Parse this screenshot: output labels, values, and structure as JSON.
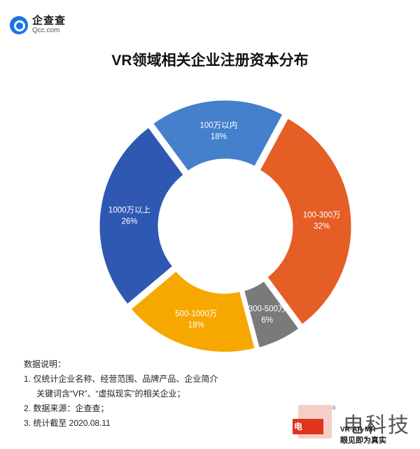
{
  "brand": {
    "name": "企查查",
    "sub": "Qcc.com"
  },
  "chart_data": {
    "type": "pie",
    "title": "VR领域相关企业注册资本分布",
    "slices": [
      {
        "label": "1000万以上",
        "value": 26,
        "display": "26%",
        "color": "#2e58b2"
      },
      {
        "label": "100万以内",
        "value": 18,
        "display": "18%",
        "color": "#4480cc"
      },
      {
        "label": "100-300万",
        "value": 32,
        "display": "32%",
        "color": "#e45e26"
      },
      {
        "label": "300-500万",
        "value": 6,
        "display": "6%",
        "color": "#7a7a7a"
      },
      {
        "label": "500-1000万",
        "value": 18,
        "display": "18%",
        "color": "#f7a800"
      }
    ]
  },
  "notes": {
    "heading": "数据说明：",
    "line1": "1. 仅统计企业名称、经营范围、品牌产品、企业简介",
    "line1b": "关键词含“VR”、“虚拟现实”的相关企业；",
    "line2": "2. 数据来源：企查查；",
    "line3": "3. 统计截至 2020.08.11"
  },
  "watermark": {
    "icon_text": "电",
    "reg": "®",
    "big": "电科技",
    "line1": "VR·AR·MR",
    "line2": "眼见即为真实"
  }
}
